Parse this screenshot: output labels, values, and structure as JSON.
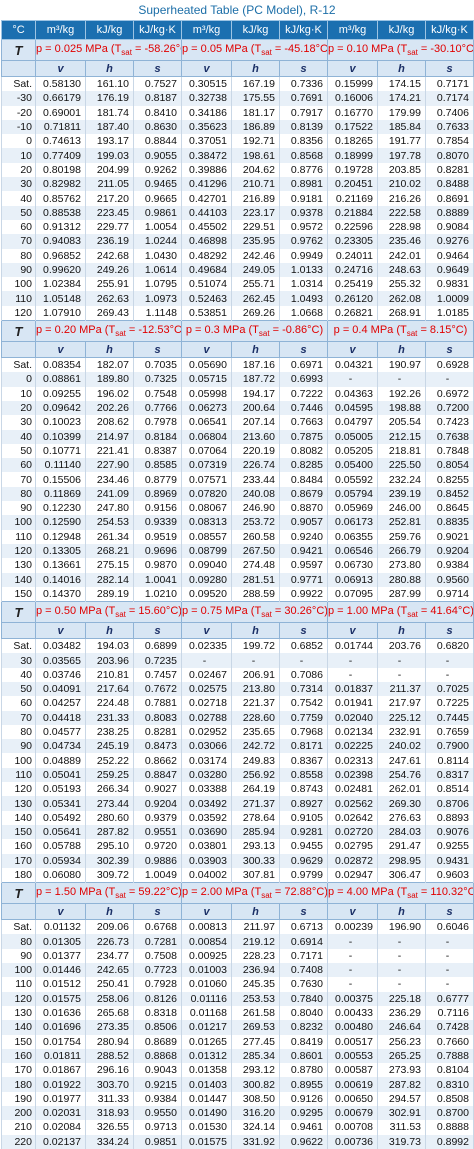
{
  "title": "Superheated Table (PC Model), R-12",
  "units": {
    "T": "°C",
    "v": "m³/kg",
    "h": "kJ/kg",
    "s": "kJ/kg·K"
  },
  "col_labels": {
    "T": "T",
    "v": "v",
    "h": "h",
    "s": "s"
  },
  "blocks": [
    {
      "pressures": [
        {
          "p_label": "p = 0.025 MPa (T",
          "tsat_label": "sat",
          "tsat_val": " = -58.26°C)"
        },
        {
          "p_label": "p = 0.05 MPa (T",
          "tsat_label": "sat",
          "tsat_val": " = -45.18°C)"
        },
        {
          "p_label": "p = 0.10 MPa (T",
          "tsat_label": "sat",
          "tsat_val": " = -30.10°C)"
        }
      ],
      "rows": [
        [
          "Sat.",
          "0.58130",
          "161.10",
          "0.7527",
          "0.30515",
          "167.19",
          "0.7336",
          "0.15999",
          "174.15",
          "0.7171"
        ],
        [
          "-30",
          "0.66179",
          "176.19",
          "0.8187",
          "0.32738",
          "175.55",
          "0.7691",
          "0.16006",
          "174.21",
          "0.7174"
        ],
        [
          "-20",
          "0.69001",
          "181.74",
          "0.8410",
          "0.34186",
          "181.17",
          "0.7917",
          "0.16770",
          "179.99",
          "0.7406"
        ],
        [
          "-10",
          "0.71811",
          "187.40",
          "0.8630",
          "0.35623",
          "186.89",
          "0.8139",
          "0.17522",
          "185.84",
          "0.7633"
        ],
        [
          "0",
          "0.74613",
          "193.17",
          "0.8844",
          "0.37051",
          "192.71",
          "0.8356",
          "0.18265",
          "191.77",
          "0.7854"
        ],
        [
          "10",
          "0.77409",
          "199.03",
          "0.9055",
          "0.38472",
          "198.61",
          "0.8568",
          "0.18999",
          "197.78",
          "0.8070"
        ],
        [
          "20",
          "0.80198",
          "204.99",
          "0.9262",
          "0.39886",
          "204.62",
          "0.8776",
          "0.19728",
          "203.85",
          "0.8281"
        ],
        [
          "30",
          "0.82982",
          "211.05",
          "0.9465",
          "0.41296",
          "210.71",
          "0.8981",
          "0.20451",
          "210.02",
          "0.8488"
        ],
        [
          "40",
          "0.85762",
          "217.20",
          "0.9665",
          "0.42701",
          "216.89",
          "0.9181",
          "0.21169",
          "216.26",
          "0.8691"
        ],
        [
          "50",
          "0.88538",
          "223.45",
          "0.9861",
          "0.44103",
          "223.17",
          "0.9378",
          "0.21884",
          "222.58",
          "0.8889"
        ],
        [
          "60",
          "0.91312",
          "229.77",
          "1.0054",
          "0.45502",
          "229.51",
          "0.9572",
          "0.22596",
          "228.98",
          "0.9084"
        ],
        [
          "70",
          "0.94083",
          "236.19",
          "1.0244",
          "0.46898",
          "235.95",
          "0.9762",
          "0.23305",
          "235.46",
          "0.9276"
        ],
        [
          "80",
          "0.96852",
          "242.68",
          "1.0430",
          "0.48292",
          "242.46",
          "0.9949",
          "0.24011",
          "242.01",
          "0.9464"
        ],
        [
          "90",
          "0.99620",
          "249.26",
          "1.0614",
          "0.49684",
          "249.05",
          "1.0133",
          "0.24716",
          "248.63",
          "0.9649"
        ],
        [
          "100",
          "1.02384",
          "255.91",
          "1.0795",
          "0.51074",
          "255.71",
          "1.0314",
          "0.25419",
          "255.32",
          "0.9831"
        ],
        [
          "110",
          "1.05148",
          "262.63",
          "1.0973",
          "0.52463",
          "262.45",
          "1.0493",
          "0.26120",
          "262.08",
          "1.0009"
        ],
        [
          "120",
          "1.07910",
          "269.43",
          "1.1148",
          "0.53851",
          "269.26",
          "1.0668",
          "0.26821",
          "268.91",
          "1.0185"
        ]
      ]
    },
    {
      "pressures": [
        {
          "p_label": "p = 0.20 MPa (T",
          "tsat_label": "sat",
          "tsat_val": " = -12.53°C)"
        },
        {
          "p_label": "p = 0.3 MPa (T",
          "tsat_label": "sat",
          "tsat_val": " = -0.86°C)"
        },
        {
          "p_label": "p = 0.4 MPa (T",
          "tsat_label": "sat",
          "tsat_val": " = 8.15°C)"
        }
      ],
      "rows": [
        [
          "Sat.",
          "0.08354",
          "182.07",
          "0.7035",
          "0.05690",
          "187.16",
          "0.6971",
          "0.04321",
          "190.97",
          "0.6928"
        ],
        [
          "0",
          "0.08861",
          "189.80",
          "0.7325",
          "0.05715",
          "187.72",
          "0.6993",
          "-",
          "-",
          "-"
        ],
        [
          "10",
          "0.09255",
          "196.02",
          "0.7548",
          "0.05998",
          "194.17",
          "0.7222",
          "0.04363",
          "192.26",
          "0.6972"
        ],
        [
          "20",
          "0.09642",
          "202.26",
          "0.7766",
          "0.06273",
          "200.64",
          "0.7446",
          "0.04595",
          "198.88",
          "0.7200"
        ],
        [
          "30",
          "0.10023",
          "208.62",
          "0.7978",
          "0.06541",
          "207.14",
          "0.7663",
          "0.04797",
          "205.54",
          "0.7423"
        ],
        [
          "40",
          "0.10399",
          "214.97",
          "0.8184",
          "0.06804",
          "213.60",
          "0.7875",
          "0.05005",
          "212.15",
          "0.7638"
        ],
        [
          "50",
          "0.10771",
          "221.41",
          "0.8387",
          "0.07064",
          "220.19",
          "0.8082",
          "0.05205",
          "218.81",
          "0.7848"
        ],
        [
          "60",
          "0.11140",
          "227.90",
          "0.8585",
          "0.07319",
          "226.74",
          "0.8285",
          "0.05400",
          "225.50",
          "0.8054"
        ],
        [
          "70",
          "0.15506",
          "234.46",
          "0.8779",
          "0.07571",
          "233.44",
          "0.8484",
          "0.05592",
          "232.24",
          "0.8255"
        ],
        [
          "80",
          "0.11869",
          "241.09",
          "0.8969",
          "0.07820",
          "240.08",
          "0.8679",
          "0.05794",
          "239.19",
          "0.8452"
        ],
        [
          "90",
          "0.12230",
          "247.80",
          "0.9156",
          "0.08067",
          "246.90",
          "0.8870",
          "0.05969",
          "246.00",
          "0.8645"
        ],
        [
          "100",
          "0.12590",
          "254.53",
          "0.9339",
          "0.08313",
          "253.72",
          "0.9057",
          "0.06173",
          "252.81",
          "0.8835"
        ],
        [
          "110",
          "0.12948",
          "261.34",
          "0.9519",
          "0.08557",
          "260.58",
          "0.9240",
          "0.06355",
          "259.76",
          "0.9021"
        ],
        [
          "120",
          "0.13305",
          "268.21",
          "0.9696",
          "0.08799",
          "267.50",
          "0.9421",
          "0.06546",
          "266.79",
          "0.9204"
        ],
        [
          "130",
          "0.13661",
          "275.15",
          "0.9870",
          "0.09040",
          "274.48",
          "0.9597",
          "0.06730",
          "273.80",
          "0.9384"
        ],
        [
          "140",
          "0.14016",
          "282.14",
          "1.0041",
          "0.09280",
          "281.51",
          "0.9771",
          "0.06913",
          "280.88",
          "0.9560"
        ],
        [
          "150",
          "0.14370",
          "289.19",
          "1.0210",
          "0.09520",
          "288.59",
          "0.9922",
          "0.07095",
          "287.99",
          "0.9714"
        ]
      ]
    },
    {
      "pressures": [
        {
          "p_label": "p = 0.50 MPa (T",
          "tsat_label": "sat",
          "tsat_val": " = 15.60°C)"
        },
        {
          "p_label": "p = 0.75 MPa (T",
          "tsat_label": "sat",
          "tsat_val": " = 30.26°C)"
        },
        {
          "p_label": "p = 1.00 MPa (T",
          "tsat_label": "sat",
          "tsat_val": " = 41.64°C)"
        }
      ],
      "rows": [
        [
          "Sat.",
          "0.03482",
          "194.03",
          "0.6899",
          "0.02335",
          "199.72",
          "0.6852",
          "0.01744",
          "203.76",
          "0.6820"
        ],
        [
          "30",
          "0.03565",
          "203.96",
          "0.7235",
          "-",
          "-",
          "-",
          "-",
          "-",
          "-"
        ],
        [
          "40",
          "0.03746",
          "210.81",
          "0.7457",
          "0.02467",
          "206.91",
          "0.7086",
          "-",
          "-",
          "-"
        ],
        [
          "50",
          "0.04091",
          "217.64",
          "0.7672",
          "0.02575",
          "213.80",
          "0.7314",
          "0.01837",
          "211.37",
          "0.7025"
        ],
        [
          "60",
          "0.04257",
          "224.48",
          "0.7881",
          "0.02718",
          "221.37",
          "0.7542",
          "0.01941",
          "217.97",
          "0.7225"
        ],
        [
          "70",
          "0.04418",
          "231.33",
          "0.8083",
          "0.02788",
          "228.60",
          "0.7759",
          "0.02040",
          "225.12",
          "0.7445"
        ],
        [
          "80",
          "0.04577",
          "238.25",
          "0.8281",
          "0.02952",
          "235.65",
          "0.7968",
          "0.02134",
          "232.91",
          "0.7659"
        ],
        [
          "90",
          "0.04734",
          "245.19",
          "0.8473",
          "0.03066",
          "242.72",
          "0.8171",
          "0.02225",
          "240.02",
          "0.7900"
        ],
        [
          "100",
          "0.04889",
          "252.22",
          "0.8662",
          "0.03174",
          "249.83",
          "0.8367",
          "0.02313",
          "247.61",
          "0.8114"
        ],
        [
          "110",
          "0.05041",
          "259.25",
          "0.8847",
          "0.03280",
          "256.92",
          "0.8558",
          "0.02398",
          "254.76",
          "0.8317"
        ],
        [
          "120",
          "0.05193",
          "266.34",
          "0.9027",
          "0.03388",
          "264.19",
          "0.8743",
          "0.02481",
          "262.01",
          "0.8514"
        ],
        [
          "130",
          "0.05341",
          "273.44",
          "0.9204",
          "0.03492",
          "271.37",
          "0.8927",
          "0.02562",
          "269.30",
          "0.8706"
        ],
        [
          "140",
          "0.05492",
          "280.60",
          "0.9379",
          "0.03592",
          "278.64",
          "0.9105",
          "0.02642",
          "276.63",
          "0.8893"
        ],
        [
          "150",
          "0.05641",
          "287.82",
          "0.9551",
          "0.03690",
          "285.94",
          "0.9281",
          "0.02720",
          "284.03",
          "0.9076"
        ],
        [
          "160",
          "0.05788",
          "295.10",
          "0.9720",
          "0.03801",
          "293.13",
          "0.9455",
          "0.02795",
          "291.47",
          "0.9255"
        ],
        [
          "170",
          "0.05934",
          "302.39",
          "0.9886",
          "0.03903",
          "300.33",
          "0.9629",
          "0.02872",
          "298.95",
          "0.9431"
        ],
        [
          "180",
          "0.06080",
          "309.72",
          "1.0049",
          "0.04002",
          "307.81",
          "0.9799",
          "0.02947",
          "306.47",
          "0.9603"
        ]
      ]
    },
    {
      "pressures": [
        {
          "p_label": "p = 1.50 MPa (T",
          "tsat_label": "sat",
          "tsat_val": " = 59.22°C)"
        },
        {
          "p_label": "p = 2.00 MPa (T",
          "tsat_label": "sat",
          "tsat_val": " = 72.88°C)"
        },
        {
          "p_label": "p = 4.00 MPa (T",
          "tsat_label": "sat",
          "tsat_val": " = 110.32°C)"
        }
      ],
      "rows": [
        [
          "Sat.",
          "0.01132",
          "209.06",
          "0.6768",
          "0.00813",
          "211.97",
          "0.6713",
          "0.00239",
          "196.90",
          "0.6046"
        ],
        [
          "80",
          "0.01305",
          "226.73",
          "0.7281",
          "0.00854",
          "219.12",
          "0.6914",
          "-",
          "-",
          "-"
        ],
        [
          "90",
          "0.01377",
          "234.77",
          "0.7508",
          "0.00925",
          "228.23",
          "0.7171",
          "-",
          "-",
          "-"
        ],
        [
          "100",
          "0.01446",
          "242.65",
          "0.7723",
          "0.01003",
          "236.94",
          "0.7408",
          "-",
          "-",
          "-"
        ],
        [
          "110",
          "0.01512",
          "250.41",
          "0.7928",
          "0.01060",
          "245.35",
          "0.7630",
          "-",
          "-",
          "-"
        ],
        [
          "120",
          "0.01575",
          "258.06",
          "0.8126",
          "0.01116",
          "253.53",
          "0.7840",
          "0.00375",
          "225.18",
          "0.6777"
        ],
        [
          "130",
          "0.01636",
          "265.68",
          "0.8318",
          "0.01168",
          "261.58",
          "0.8040",
          "0.00433",
          "236.29",
          "0.7116"
        ],
        [
          "140",
          "0.01696",
          "273.35",
          "0.8506",
          "0.01217",
          "269.53",
          "0.8232",
          "0.00480",
          "246.64",
          "0.7428"
        ],
        [
          "150",
          "0.01754",
          "280.94",
          "0.8689",
          "0.01265",
          "277.45",
          "0.8419",
          "0.00517",
          "256.23",
          "0.7660"
        ],
        [
          "160",
          "0.01811",
          "288.52",
          "0.8868",
          "0.01312",
          "285.34",
          "0.8601",
          "0.00553",
          "265.25",
          "0.7888"
        ],
        [
          "170",
          "0.01867",
          "296.16",
          "0.9043",
          "0.01358",
          "293.12",
          "0.8780",
          "0.00587",
          "273.93",
          "0.8104"
        ],
        [
          "180",
          "0.01922",
          "303.70",
          "0.9215",
          "0.01403",
          "300.82",
          "0.8955",
          "0.00619",
          "287.82",
          "0.8310"
        ],
        [
          "190",
          "0.01977",
          "311.33",
          "0.9384",
          "0.01447",
          "308.50",
          "0.9126",
          "0.00650",
          "294.57",
          "0.8508"
        ],
        [
          "200",
          "0.02031",
          "318.93",
          "0.9550",
          "0.01490",
          "316.20",
          "0.9295",
          "0.00679",
          "302.91",
          "0.8700"
        ],
        [
          "210",
          "0.02084",
          "326.55",
          "0.9713",
          "0.01530",
          "324.14",
          "0.9461",
          "0.00708",
          "311.53",
          "0.8888"
        ],
        [
          "220",
          "0.02137",
          "334.24",
          "0.9851",
          "0.01575",
          "331.92",
          "0.9622",
          "0.00736",
          "319.73",
          "0.8992"
        ]
      ]
    }
  ]
}
